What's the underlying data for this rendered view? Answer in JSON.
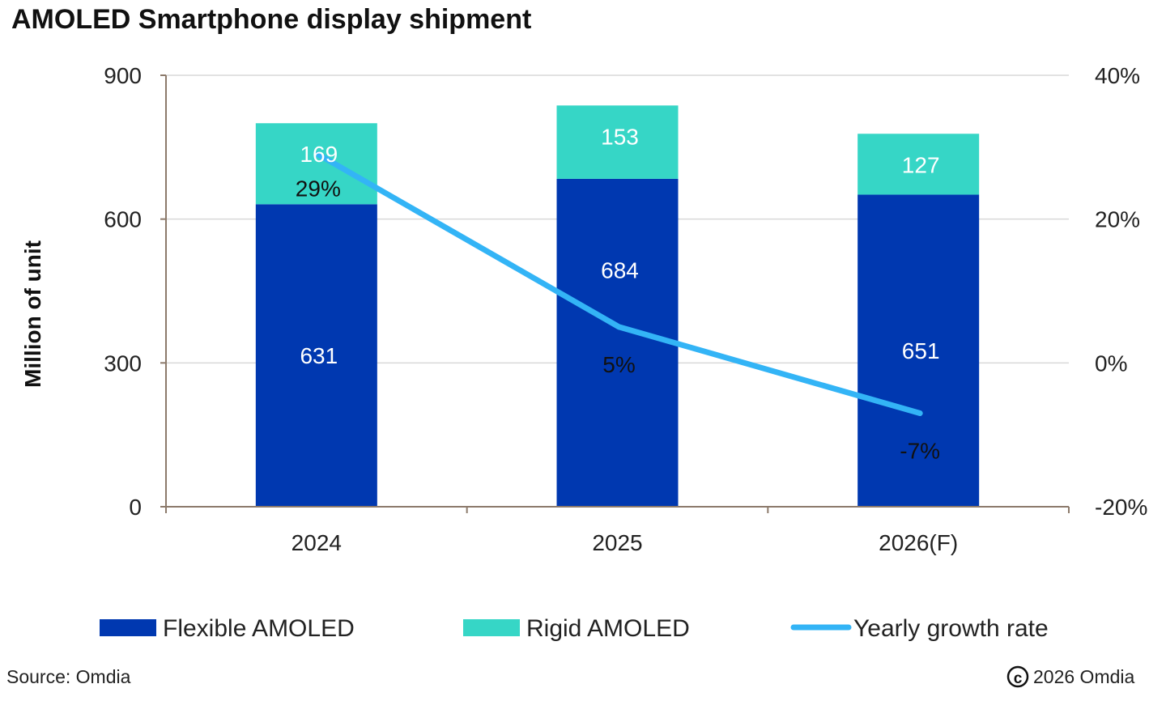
{
  "chart_data": {
    "type": "bar",
    "stacked": true,
    "title": "AMOLED Smartphone display shipment",
    "ylabel": "Million of unit",
    "categories": [
      "2024",
      "2025",
      "2026(F)"
    ],
    "ylim": [
      0,
      900
    ],
    "yticks": [
      "0",
      "300",
      "600",
      "900"
    ],
    "y2lim": [
      -20,
      40
    ],
    "y2ticks": [
      "-20%",
      "0%",
      "20%",
      "40%"
    ],
    "grid": true,
    "legend_position": "bottom",
    "series": [
      {
        "name": "Flexible AMOLED",
        "kind": "bar",
        "color": "#0038B0",
        "values": [
          631,
          684,
          651
        ],
        "labels": [
          "631",
          "684",
          "651"
        ]
      },
      {
        "name": "Rigid AMOLED",
        "kind": "bar",
        "color": "#36D6C6",
        "values": [
          169,
          153,
          127
        ],
        "labels": [
          "169",
          "153",
          "127"
        ]
      },
      {
        "name": "Yearly growth rate",
        "kind": "line",
        "axis": "right",
        "color": "#33B4F6",
        "values": [
          29,
          5,
          -7
        ],
        "labels": [
          "29%",
          "5%",
          "-7%"
        ]
      }
    ]
  },
  "footer": {
    "source": "Source: Omdia",
    "copyright": "2026 Omdia"
  }
}
